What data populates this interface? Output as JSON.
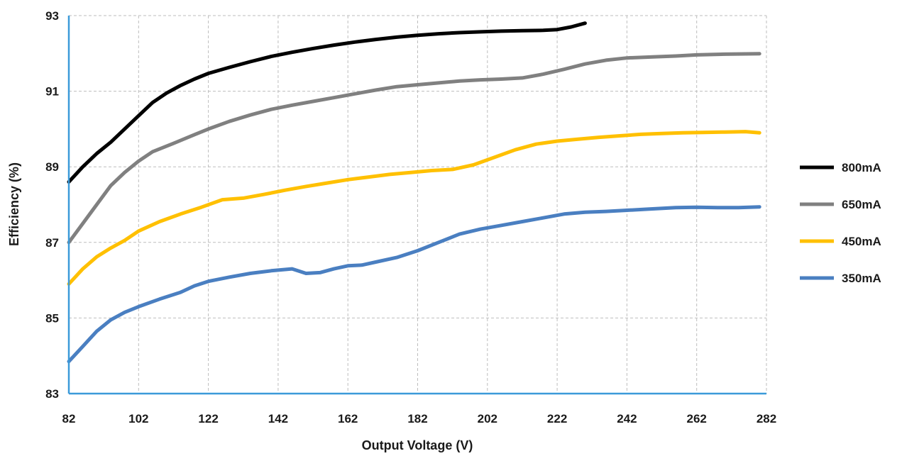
{
  "chart_data": {
    "type": "line",
    "title": "",
    "xlabel": "Output Voltage (V)",
    "ylabel": "Efficiency (%)",
    "xlim": [
      82,
      282
    ],
    "ylim": [
      83,
      93
    ],
    "xticks": [
      82,
      102,
      122,
      142,
      162,
      182,
      202,
      222,
      242,
      262,
      282
    ],
    "yticks": [
      83,
      85,
      87,
      89,
      91,
      93
    ],
    "grid": true,
    "legend_position": "right",
    "axis_color": "#3b9ad9",
    "series": [
      {
        "name": "800mA",
        "color": "#000000",
        "x": [
          82,
          86,
          90,
          94,
          98,
          102,
          106,
          110,
          114,
          118,
          122,
          128,
          134,
          140,
          146,
          152,
          158,
          164,
          170,
          176,
          182,
          188,
          194,
          200,
          206,
          212,
          218,
          222,
          226,
          230
        ],
        "y": [
          88.6,
          89.0,
          89.35,
          89.65,
          90.0,
          90.35,
          90.7,
          90.95,
          91.15,
          91.32,
          91.47,
          91.63,
          91.78,
          91.92,
          92.03,
          92.13,
          92.22,
          92.3,
          92.37,
          92.43,
          92.48,
          92.52,
          92.55,
          92.57,
          92.59,
          92.6,
          92.61,
          92.63,
          92.7,
          92.8
        ]
      },
      {
        "name": "650mA",
        "color": "#808080",
        "x": [
          82,
          86,
          90,
          94,
          98,
          102,
          106,
          112,
          118,
          122,
          128,
          134,
          140,
          146,
          152,
          158,
          164,
          170,
          176,
          182,
          188,
          194,
          200,
          206,
          212,
          218,
          224,
          230,
          236,
          242,
          250,
          256,
          262,
          270,
          280
        ],
        "y": [
          87.0,
          87.5,
          88.0,
          88.5,
          88.85,
          89.15,
          89.4,
          89.62,
          89.85,
          90.0,
          90.2,
          90.37,
          90.52,
          90.63,
          90.73,
          90.83,
          90.93,
          91.03,
          91.12,
          91.17,
          91.22,
          91.27,
          91.3,
          91.32,
          91.35,
          91.45,
          91.58,
          91.72,
          91.82,
          91.88,
          91.91,
          91.93,
          91.96,
          91.98,
          91.99
        ]
      },
      {
        "name": "450mA",
        "color": "#ffc000",
        "x": [
          82,
          86,
          90,
          94,
          98,
          102,
          108,
          114,
          120,
          126,
          132,
          138,
          144,
          150,
          156,
          162,
          168,
          174,
          180,
          186,
          192,
          198,
          204,
          210,
          216,
          222,
          228,
          234,
          240,
          246,
          252,
          258,
          264,
          270,
          276,
          280
        ],
        "y": [
          85.9,
          86.3,
          86.62,
          86.85,
          87.05,
          87.3,
          87.55,
          87.75,
          87.93,
          88.13,
          88.17,
          88.27,
          88.38,
          88.48,
          88.57,
          88.66,
          88.73,
          88.8,
          88.85,
          88.9,
          88.93,
          89.05,
          89.25,
          89.45,
          89.6,
          89.68,
          89.73,
          89.78,
          89.82,
          89.86,
          89.88,
          89.9,
          89.91,
          89.92,
          89.93,
          89.9
        ]
      },
      {
        "name": "350mA",
        "color": "#4a7fc1",
        "x": [
          82,
          86,
          90,
          94,
          98,
          102,
          108,
          114,
          118,
          122,
          128,
          134,
          140,
          146,
          150,
          154,
          158,
          162,
          166,
          170,
          176,
          182,
          188,
          194,
          200,
          206,
          212,
          218,
          224,
          230,
          236,
          242,
          248,
          256,
          262,
          268,
          274,
          280
        ],
        "y": [
          83.85,
          84.25,
          84.65,
          84.95,
          85.15,
          85.3,
          85.5,
          85.68,
          85.85,
          85.97,
          86.08,
          86.18,
          86.25,
          86.3,
          86.18,
          86.2,
          86.3,
          86.38,
          86.4,
          86.48,
          86.6,
          86.78,
          87.0,
          87.22,
          87.35,
          87.45,
          87.55,
          87.65,
          87.75,
          87.8,
          87.82,
          87.85,
          87.88,
          87.92,
          87.93,
          87.92,
          87.92,
          87.94
        ]
      }
    ]
  }
}
